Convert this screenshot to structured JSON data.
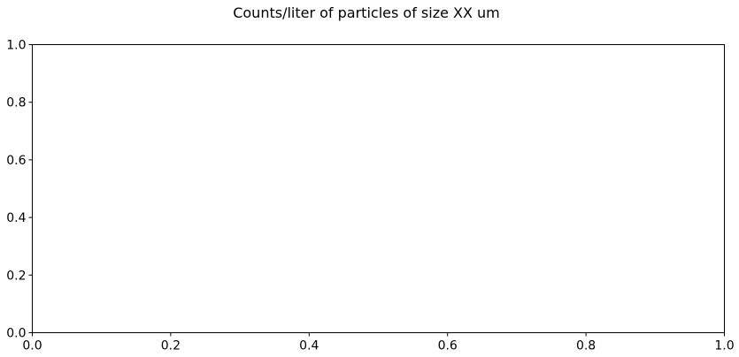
{
  "chart_data": {
    "type": "line",
    "title": "Counts/liter of particles of size XX um",
    "xlabel": "",
    "ylabel": "",
    "xlim": [
      0.0,
      1.0
    ],
    "ylim": [
      0.0,
      1.0
    ],
    "x_ticks": [
      "0.0",
      "0.2",
      "0.4",
      "0.6",
      "0.8",
      "1.0"
    ],
    "y_ticks": [
      "0.0",
      "0.2",
      "0.4",
      "0.6",
      "0.8",
      "1.0"
    ],
    "series": [],
    "grid": false,
    "legend": "none"
  }
}
